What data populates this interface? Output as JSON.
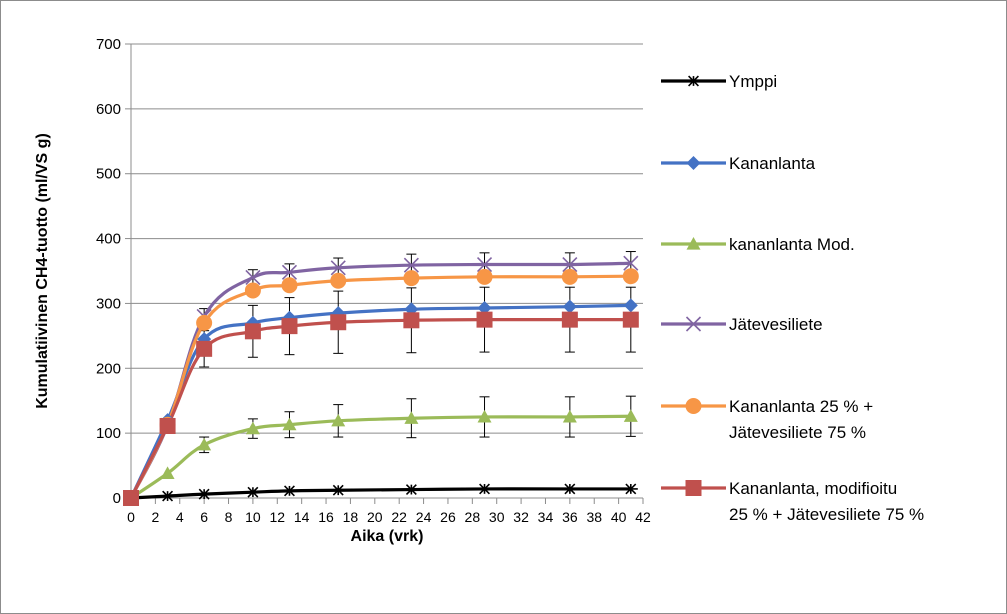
{
  "chart_data": {
    "type": "line",
    "xlabel": "Aika (vrk)",
    "ylabel": "Kumulatiivinen CH4-tuotto (ml/VS g)",
    "ylim": [
      0,
      700
    ],
    "xlim": [
      0,
      42
    ],
    "yticks": [
      0,
      100,
      200,
      300,
      400,
      500,
      600,
      700
    ],
    "xticks": [
      0,
      2,
      4,
      6,
      8,
      10,
      12,
      14,
      16,
      18,
      20,
      22,
      24,
      26,
      28,
      30,
      32,
      34,
      36,
      38,
      40,
      42
    ],
    "grid": "horizontal",
    "legend_position": "right",
    "x": [
      0,
      3,
      6,
      10,
      13,
      17,
      23,
      29,
      36,
      41
    ],
    "series": [
      {
        "name": "Ymppi",
        "marker": "asterisk",
        "color": "#000000",
        "values": [
          0,
          3,
          6,
          9,
          11,
          12,
          13,
          14,
          14,
          14
        ],
        "errors": null,
        "legend_lines": [
          "Ymppi"
        ]
      },
      {
        "name": "Kananlanta",
        "marker": "diamond",
        "color": "#4472c4",
        "values": [
          0,
          120,
          245,
          270,
          278,
          285,
          291,
          293,
          295,
          297
        ],
        "errors": null,
        "legend_lines": [
          "Kananlanta"
        ]
      },
      {
        "name": "kananlanta Mod.",
        "marker": "triangle",
        "color": "#9bbb59",
        "values": [
          0,
          38,
          82,
          107,
          113,
          119,
          123,
          125,
          125,
          126
        ],
        "errors": [
          0,
          0,
          12,
          15,
          20,
          25,
          30,
          31,
          31,
          31
        ],
        "legend_lines": [
          "kananlanta Mod."
        ]
      },
      {
        "name": "Jätevesiliete",
        "marker": "x",
        "color": "#8064a2",
        "values": [
          0,
          112,
          280,
          340,
          348,
          355,
          359,
          360,
          360,
          362
        ],
        "errors": [
          0,
          0,
          12,
          12,
          13,
          15,
          17,
          18,
          18,
          18
        ],
        "legend_lines": [
          "Jätevesiliete"
        ]
      },
      {
        "name": "Kananlanta 25 % + Jätevesiliete 75 %",
        "marker": "circle",
        "color": "#f79646",
        "values": [
          0,
          113,
          270,
          320,
          328,
          335,
          339,
          341,
          341,
          342
        ],
        "errors": null,
        "legend_lines": [
          "Kananlanta 25 % +",
          "Jätevesiliete 75 %"
        ]
      },
      {
        "name": "Kananlanta, modifioitu 25 % + Jätevesiliete 75 %",
        "marker": "square",
        "color": "#c0504d",
        "values": [
          0,
          111,
          230,
          257,
          265,
          271,
          274,
          275,
          275,
          275
        ],
        "errors": [
          0,
          0,
          28,
          40,
          44,
          48,
          50,
          50,
          50,
          50
        ],
        "legend_lines": [
          "Kananlanta, modifioitu",
          "25 % + Jätevesiliete 75 %"
        ]
      }
    ]
  }
}
